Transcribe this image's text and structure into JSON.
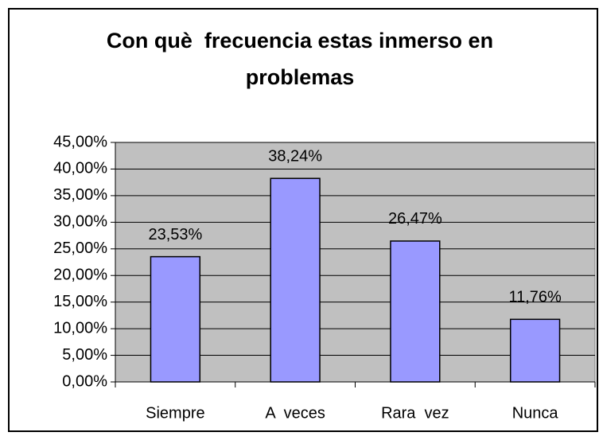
{
  "chart_data": {
    "type": "bar",
    "title": "Con què  frecuencia estas inmerso en problemas",
    "categories": [
      "Siempre",
      "A  veces",
      "Rara  vez",
      "Nunca"
    ],
    "values": [
      23.53,
      38.24,
      26.47,
      11.76
    ],
    "value_labels": [
      "23,53%",
      "38,24%",
      "26,47%",
      "11,76%"
    ],
    "color": "#9999ff",
    "ylim": [
      0,
      45
    ],
    "yticks": [
      {
        "value": 0,
        "label": "0,00%"
      },
      {
        "value": 5,
        "label": "5,00%"
      },
      {
        "value": 10,
        "label": "10,00%"
      },
      {
        "value": 15,
        "label": "15,00%"
      },
      {
        "value": 20,
        "label": "20,00%"
      },
      {
        "value": 25,
        "label": "25,00%"
      },
      {
        "value": 30,
        "label": "30,00%"
      },
      {
        "value": 35,
        "label": "35,00%"
      },
      {
        "value": 40,
        "label": "40,00%"
      },
      {
        "value": 45,
        "label": "45,00%"
      }
    ],
    "grid": true
  }
}
